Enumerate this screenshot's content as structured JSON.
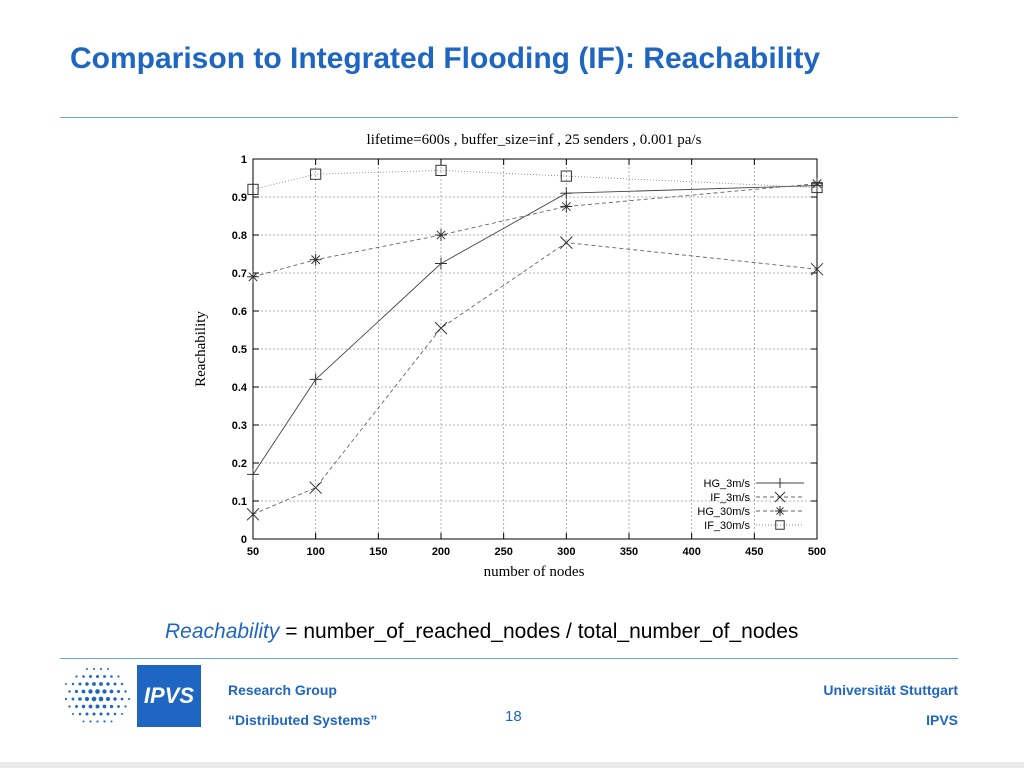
{
  "slide": {
    "title": "Comparison to Integrated Flooding (IF): Reachability",
    "formula_term": "Reachability",
    "formula_rest": " = number_of_reached_nodes / total_number_of_nodes",
    "footer": {
      "logo_label": "IPVS",
      "left_line1": "Research Group",
      "left_line2": "“Distributed Systems”",
      "page_number": "18",
      "right_line1": "Universität Stuttgart",
      "right_line2": "IPVS"
    },
    "accent_color": "#1f66c2"
  },
  "chart_data": {
    "type": "line",
    "title": "lifetime=600s , buffer_size=inf , 25 senders , 0.001 pa/s",
    "xlabel": "number of nodes",
    "ylabel": "Reachability",
    "xlim": [
      50,
      500
    ],
    "ylim": [
      0,
      1
    ],
    "xticks": [
      "50",
      "100",
      "150",
      "200",
      "250",
      "300",
      "350",
      "400",
      "450",
      "500"
    ],
    "yticks": [
      "0",
      "0.1",
      "0.2",
      "0.3",
      "0.4",
      "0.5",
      "0.6",
      "0.7",
      "0.8",
      "0.9",
      "1"
    ],
    "grid": true,
    "legend_position": "bottom-right",
    "x": [
      50,
      100,
      200,
      300,
      500
    ],
    "series": [
      {
        "name": "HG_3m/s",
        "marker": "plus",
        "line": "solid",
        "values": [
          0.17,
          0.42,
          0.725,
          0.91,
          0.93
        ]
      },
      {
        "name": "IF_3m/s",
        "marker": "x",
        "line": "dashed",
        "values": [
          0.065,
          0.135,
          0.555,
          0.78,
          0.71
        ]
      },
      {
        "name": "HG_30m/s",
        "marker": "asterisk",
        "line": "dashed",
        "values": [
          0.69,
          0.735,
          0.8,
          0.875,
          0.935
        ]
      },
      {
        "name": "IF_30m/s",
        "marker": "square",
        "line": "dotted",
        "values": [
          0.92,
          0.96,
          0.97,
          0.955,
          0.925
        ]
      }
    ]
  }
}
